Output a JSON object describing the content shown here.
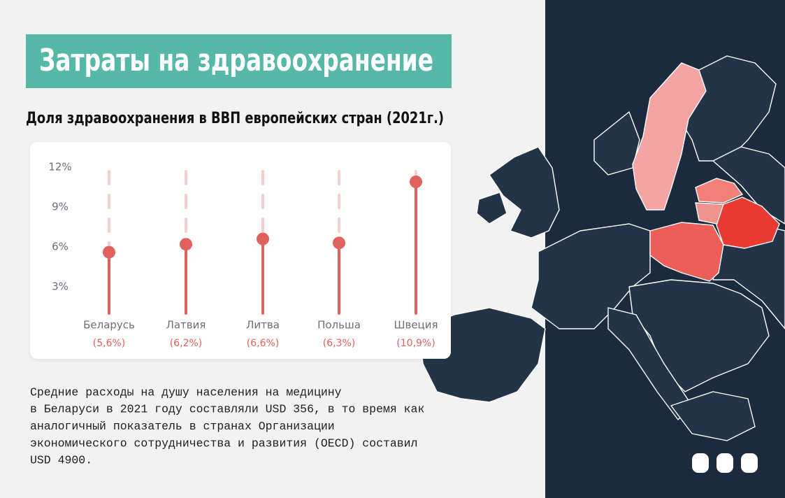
{
  "heading": "Затраты на здравоохранение",
  "chart_data": {
    "type": "lollipop",
    "title": "Доля здравоохранения в ВВП европейских стран (2021г.)",
    "categories": [
      "Беларусь",
      "Латвия",
      "Литва",
      "Польша",
      "Швеция"
    ],
    "values": [
      5.6,
      6.2,
      6.6,
      6.3,
      10.9
    ],
    "value_labels": [
      "(5,6%)",
      "(6,2%)",
      "(6,6%)",
      "(6,3%)",
      "(10,9%)"
    ],
    "color": "#e0625f",
    "ylim": [
      1,
      12
    ],
    "yticks": [
      {
        "value": 3,
        "label": "3%"
      },
      {
        "value": 6,
        "label": "6%"
      },
      {
        "value": 9,
        "label": "9%"
      },
      {
        "value": 12,
        "label": "12%"
      }
    ],
    "grid": false
  },
  "note": [
    "Средние расходы на душу населения на медицину",
    "в Беларуси в 2021 году составляли USD 356, в то время как",
    "аналогичный показатель в странах Организации",
    "экономического сотрудничества и развития (OECD) составил",
    "USD 4900."
  ]
}
